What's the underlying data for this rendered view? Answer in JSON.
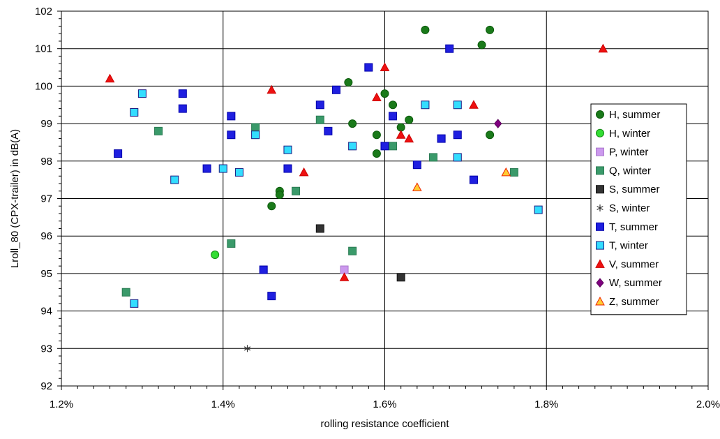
{
  "chart_data": {
    "type": "scatter",
    "title": "",
    "xlabel": "rolling resistance coefficient",
    "ylabel": "Lroll_80 (CPX-trailer) in dB(A)",
    "xlim": [
      1.2,
      2.0
    ],
    "ylim": [
      92,
      102
    ],
    "x_unit": "%",
    "x_ticks": [
      "1.2%",
      "1.4%",
      "1.6%",
      "1.8%",
      "2.0%"
    ],
    "y_ticks": [
      "92",
      "93",
      "94",
      "95",
      "96",
      "97",
      "98",
      "99",
      "100",
      "101",
      "102"
    ],
    "grid": true,
    "legend_position": "right",
    "series": [
      {
        "name": "H, summer",
        "marker": "circle",
        "fill": "#1a7a1a",
        "stroke": "#0b5a0b",
        "points": [
          [
            1.65,
            101.5
          ],
          [
            1.73,
            101.5
          ],
          [
            1.72,
            101.1
          ],
          [
            1.555,
            100.1
          ],
          [
            1.6,
            99.8
          ],
          [
            1.61,
            99.5
          ],
          [
            1.56,
            99.0
          ],
          [
            1.59,
            98.7
          ],
          [
            1.62,
            98.9
          ],
          [
            1.63,
            99.1
          ],
          [
            1.73,
            98.7
          ],
          [
            1.59,
            98.2
          ],
          [
            1.47,
            97.2
          ],
          [
            1.47,
            97.1
          ],
          [
            1.46,
            96.8
          ]
        ]
      },
      {
        "name": "H, winter",
        "marker": "circle",
        "fill": "#33dd33",
        "stroke": "#118811",
        "points": [
          [
            1.39,
            95.5
          ]
        ]
      },
      {
        "name": "P, winter",
        "marker": "square",
        "fill": "#cc99ee",
        "stroke": "#aa77cc",
        "points": [
          [
            1.55,
            95.1
          ]
        ]
      },
      {
        "name": "Q, winter",
        "marker": "square",
        "fill": "#3a9a6a",
        "stroke": "#2a7a52",
        "points": [
          [
            1.32,
            98.8
          ],
          [
            1.44,
            98.9
          ],
          [
            1.52,
            99.1
          ],
          [
            1.61,
            98.4
          ],
          [
            1.66,
            98.1
          ],
          [
            1.76,
            97.7
          ],
          [
            1.49,
            97.2
          ],
          [
            1.41,
            95.8
          ],
          [
            1.56,
            95.6
          ],
          [
            1.28,
            94.5
          ]
        ]
      },
      {
        "name": "S, summer",
        "marker": "square",
        "fill": "#333333",
        "stroke": "#111111",
        "points": [
          [
            1.52,
            96.2
          ],
          [
            1.62,
            94.9
          ]
        ]
      },
      {
        "name": "S, winter",
        "marker": "asterisk",
        "fill": "#333333",
        "stroke": "#333333",
        "points": [
          [
            1.43,
            93.0
          ]
        ]
      },
      {
        "name": "T, summer",
        "marker": "square",
        "fill": "#1f1fe0",
        "stroke": "#0000aa",
        "points": [
          [
            1.68,
            101.0
          ],
          [
            1.58,
            100.5
          ],
          [
            1.35,
            99.8
          ],
          [
            1.54,
            99.9
          ],
          [
            1.52,
            99.5
          ],
          [
            1.35,
            99.4
          ],
          [
            1.41,
            99.2
          ],
          [
            1.61,
            99.2
          ],
          [
            1.41,
            98.7
          ],
          [
            1.53,
            98.8
          ],
          [
            1.69,
            98.7
          ],
          [
            1.67,
            98.6
          ],
          [
            1.6,
            98.4
          ],
          [
            1.27,
            98.2
          ],
          [
            1.64,
            97.9
          ],
          [
            1.38,
            97.8
          ],
          [
            1.48,
            97.8
          ],
          [
            1.71,
            97.5
          ],
          [
            1.45,
            95.1
          ],
          [
            1.46,
            94.4
          ]
        ]
      },
      {
        "name": "T, winter",
        "marker": "square",
        "fill": "#33ddff",
        "stroke": "#1a1a80",
        "points": [
          [
            1.3,
            99.8
          ],
          [
            1.29,
            99.3
          ],
          [
            1.65,
            99.5
          ],
          [
            1.69,
            99.5
          ],
          [
            1.44,
            98.7
          ],
          [
            1.48,
            98.3
          ],
          [
            1.56,
            98.4
          ],
          [
            1.69,
            98.1
          ],
          [
            1.4,
            97.8
          ],
          [
            1.42,
            97.7
          ],
          [
            1.34,
            97.5
          ],
          [
            1.79,
            96.7
          ],
          [
            1.29,
            94.2
          ]
        ]
      },
      {
        "name": "V, summer",
        "marker": "triangle",
        "fill": "#ee1111",
        "stroke": "#cc0000",
        "points": [
          [
            1.87,
            101.0
          ],
          [
            1.6,
            100.5
          ],
          [
            1.26,
            100.2
          ],
          [
            1.46,
            99.9
          ],
          [
            1.59,
            99.7
          ],
          [
            1.71,
            99.5
          ],
          [
            1.62,
            98.7
          ],
          [
            1.63,
            98.6
          ],
          [
            1.5,
            97.7
          ],
          [
            1.55,
            94.9
          ]
        ]
      },
      {
        "name": "W, summer",
        "marker": "diamond",
        "fill": "#800080",
        "stroke": "#5a005a",
        "points": [
          [
            1.74,
            99.0
          ]
        ]
      },
      {
        "name": "Z, summer",
        "marker": "triangle",
        "fill": "#ffcc33",
        "stroke": "#ee2200",
        "points": [
          [
            1.75,
            97.7
          ],
          [
            1.64,
            97.3
          ]
        ]
      }
    ]
  }
}
